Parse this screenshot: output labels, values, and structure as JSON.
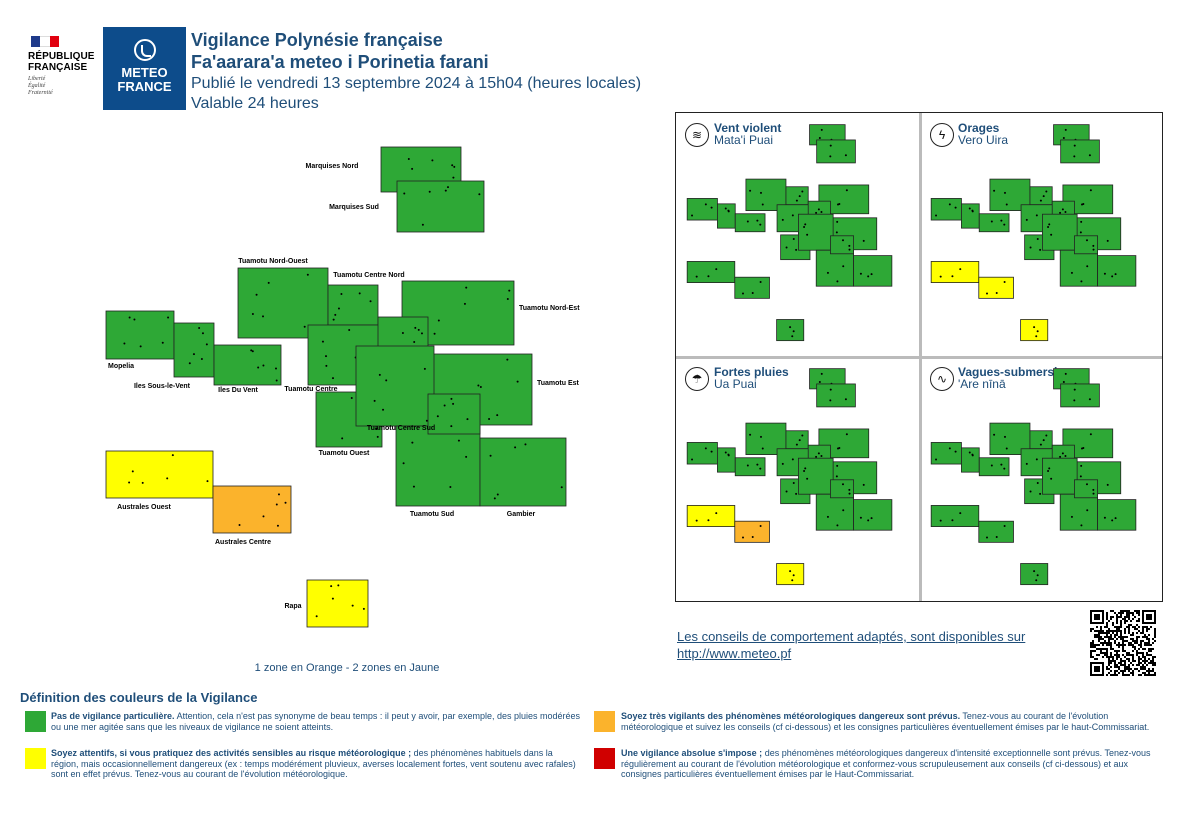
{
  "header": {
    "republic_name": "RÉPUBLIQUE\nFRANÇAISE",
    "motto": "Liberté\nÉgalité\nFraternité",
    "meteo_logo_text": "METEO\nFRANCE",
    "title_fr": "Vigilance Polynésie française",
    "title_ty": "Fa'aarara'a meteo i Porinetia farani",
    "published": "Publié le vendredi 13 septembre 2024 à 15h04 (heures locales)",
    "validity": "Valable 24 heures"
  },
  "colors": {
    "green": "#2ea836",
    "yellow": "#ffff00",
    "orange": "#fbb32c",
    "red": "#d00000",
    "text_blue": "#1f4e79",
    "meteo_blue": "#0d4c8b"
  },
  "zones": [
    {
      "name": "Marquises Nord",
      "level": "green"
    },
    {
      "name": "Marquises Sud",
      "level": "green"
    },
    {
      "name": "Tuamotu Nord-Ouest",
      "level": "green"
    },
    {
      "name": "Tuamotu Centre Nord",
      "level": "green"
    },
    {
      "name": "Tuamotu Nord-Est",
      "level": "green"
    },
    {
      "name": "Mopelia",
      "level": "green"
    },
    {
      "name": "Iles Sous-le-Vent",
      "level": "green"
    },
    {
      "name": "Iles Du Vent",
      "level": "green"
    },
    {
      "name": "Tuamotu Centre",
      "level": "green"
    },
    {
      "name": "Tuamotu Est",
      "level": "green"
    },
    {
      "name": "Tuamotu Ouest",
      "level": "green"
    },
    {
      "name": "Tuamotu Centre Sud",
      "level": "green"
    },
    {
      "name": "Tuamotu Sud",
      "level": "green"
    },
    {
      "name": "Gambier",
      "level": "green"
    },
    {
      "name": "Australes Ouest",
      "level": "yellow"
    },
    {
      "name": "Australes Centre",
      "level": "orange"
    },
    {
      "name": "Rapa",
      "level": "yellow"
    }
  ],
  "map_summary": "1 zone en Orange - 2 zones en Jaune",
  "phenomena": [
    {
      "name": "Vent violent",
      "name_ty": "Mata'i Puai",
      "icon": "wind-icon",
      "level": "green",
      "yellow_zones": [],
      "orange_zones": []
    },
    {
      "name": "Orages",
      "name_ty": "Vero Uira",
      "icon": "lightning-icon",
      "level": "yellow",
      "yellow_zones": [
        "Australes Ouest",
        "Australes Centre",
        "Rapa"
      ],
      "orange_zones": []
    },
    {
      "name": "Fortes pluies",
      "name_ty": "Ua Puai",
      "icon": "rain-icon",
      "level": "orange",
      "yellow_zones": [
        "Australes Ouest",
        "Rapa"
      ],
      "orange_zones": [
        "Australes Centre"
      ]
    },
    {
      "name": "Vagues-submersion",
      "name_ty": "'Are nīnā",
      "icon": "wave-icon",
      "level": "green",
      "yellow_zones": [],
      "orange_zones": []
    }
  ],
  "advice": {
    "text": "Les conseils de comportement adaptés, sont disponibles sur",
    "link": "http://www.meteo.pf"
  },
  "legend": {
    "title": "Définition des couleurs de la Vigilance",
    "items": [
      {
        "color": "green",
        "bold": "Pas de vigilance particulière.",
        "text": " Attention, cela n'est pas synonyme de beau temps : il peut y avoir, par exemple, des pluies modérées ou une mer agitée sans que les niveaux de vigilance ne soient atteints."
      },
      {
        "color": "orange",
        "bold": "Soyez très vigilants des phénomènes météorologiques dangereux sont prévus.",
        "text": " Tenez-vous au courant de l'évolution météorologique et suivez les conseils (cf ci-dessous) et les consignes particulières éventuellement émises par le haut-Commissariat."
      },
      {
        "color": "yellow",
        "bold": "Soyez attentifs, si vous pratiquez des activités sensibles au risque météorologique ;",
        "text": " des phénomènes habituels dans la région, mais occasionnellement dangereux (ex : temps modérément pluvieux, averses localement fortes, vent soutenu avec rafales) sont en effet prévus. Tenez-vous au courant de l'évolution météorologique."
      },
      {
        "color": "red",
        "bold": "Une vigilance absolue s'impose ;",
        "text": " des phénomènes météorologiques dangereux d'intensité exceptionnelle sont prévus. Tenez-vous régulièrement au courant de l'évolution météorologique et conformez-vous scrupuleusement aux conseils (cf ci-dessous) et aux consignes particulières éventuellement émises par le Haut-Commissariat."
      }
    ]
  }
}
